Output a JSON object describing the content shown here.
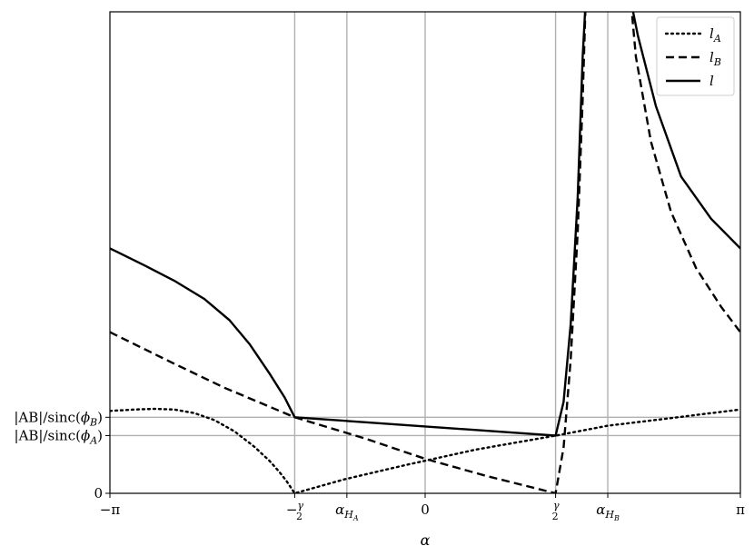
{
  "chart_data": {
    "type": "line",
    "xlabel": "α",
    "ylabel": "",
    "xlim": [
      -3.14159,
      3.14159
    ],
    "ylim": [
      0,
      6.84
    ],
    "grid": "vertical lines at x ticks, horizontal lines at two labeled y levels",
    "legend_position": "top-right",
    "x_ticks": [
      {
        "value": -3.14159,
        "label": "−π"
      },
      {
        "value": -1.3,
        "label": "−γ/2"
      },
      {
        "value": -0.78,
        "label": "α_H_A"
      },
      {
        "value": 0.0,
        "label": "0"
      },
      {
        "value": 1.3,
        "label": "γ/2"
      },
      {
        "value": 1.82,
        "label": "α_H_B"
      },
      {
        "value": 3.14159,
        "label": "π"
      }
    ],
    "y_ticks": [
      {
        "value": 0,
        "label": "0"
      },
      {
        "value": 0.82,
        "label": "|AB|/sinc(ϕ_A)"
      },
      {
        "value": 1.08,
        "label": "|AB|/sinc(ϕ_B)"
      }
    ],
    "series": [
      {
        "name": "l_A",
        "style": "dotted",
        "color": "#000000",
        "points": [
          [
            -3.14159,
            1.17
          ],
          [
            -2.9,
            1.19
          ],
          [
            -2.7,
            1.2
          ],
          [
            -2.5,
            1.19
          ],
          [
            -2.3,
            1.14
          ],
          [
            -2.1,
            1.04
          ],
          [
            -1.9,
            0.88
          ],
          [
            -1.7,
            0.66
          ],
          [
            -1.55,
            0.46
          ],
          [
            -1.45,
            0.3
          ],
          [
            -1.38,
            0.17
          ],
          [
            -1.3,
            0.0
          ],
          [
            -0.8,
            0.2
          ],
          [
            -0.2,
            0.4
          ],
          [
            0.5,
            0.62
          ],
          [
            1.3,
            0.82
          ],
          [
            1.82,
            0.96
          ],
          [
            2.4,
            1.06
          ],
          [
            2.8,
            1.13
          ],
          [
            3.14159,
            1.19
          ]
        ]
      },
      {
        "name": "l_B",
        "style": "dashed",
        "color": "#000000",
        "points": [
          [
            -3.14159,
            2.29
          ],
          [
            -2.5,
            1.84
          ],
          [
            -2.0,
            1.5
          ],
          [
            -1.6,
            1.26
          ],
          [
            -1.3,
            1.08
          ],
          [
            -0.6,
            0.78
          ],
          [
            0.0,
            0.49
          ],
          [
            0.6,
            0.25
          ],
          [
            1.3,
            0.0
          ],
          [
            1.38,
            0.65
          ],
          [
            1.45,
            1.9
          ],
          [
            1.52,
            3.7
          ],
          [
            1.57,
            5.6
          ],
          [
            1.6,
            7.0
          ],
          [
            2.05,
            7.0
          ],
          [
            2.1,
            6.2
          ],
          [
            2.25,
            5.0
          ],
          [
            2.45,
            4.0
          ],
          [
            2.7,
            3.2
          ],
          [
            2.95,
            2.65
          ],
          [
            3.14159,
            2.29
          ]
        ]
      },
      {
        "name": "l",
        "style": "solid",
        "color": "#000000",
        "points": [
          [
            -3.14159,
            3.48
          ],
          [
            -2.8,
            3.24
          ],
          [
            -2.5,
            3.02
          ],
          [
            -2.2,
            2.76
          ],
          [
            -1.95,
            2.46
          ],
          [
            -1.75,
            2.12
          ],
          [
            -1.55,
            1.7
          ],
          [
            -1.4,
            1.36
          ],
          [
            -1.3,
            1.08
          ],
          [
            0.0,
            0.95
          ],
          [
            1.3,
            0.82
          ],
          [
            1.38,
            1.3
          ],
          [
            1.45,
            2.4
          ],
          [
            1.52,
            4.2
          ],
          [
            1.57,
            6.2
          ],
          [
            1.6,
            7.0
          ],
          [
            2.05,
            7.0
          ],
          [
            2.12,
            6.5
          ],
          [
            2.3,
            5.5
          ],
          [
            2.55,
            4.5
          ],
          [
            2.85,
            3.9
          ],
          [
            3.14159,
            3.48
          ]
        ]
      }
    ]
  }
}
